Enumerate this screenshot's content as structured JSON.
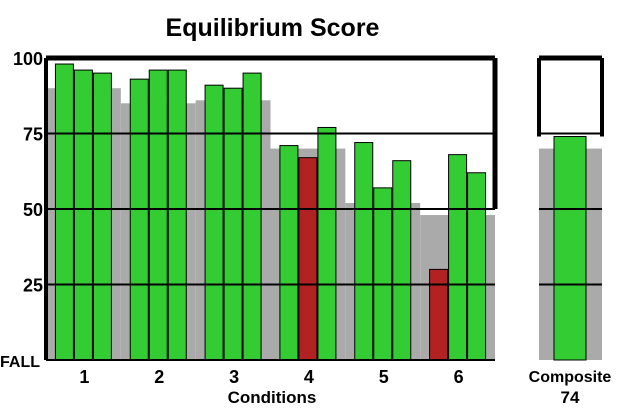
{
  "chart_data": {
    "type": "bar",
    "title": "Equilibrium Score",
    "xlabel": "Conditions",
    "ylabel": "",
    "ylim": [
      0,
      100
    ],
    "yticks": [
      {
        "value": 100,
        "label": "100"
      },
      {
        "value": 75,
        "label": "75"
      },
      {
        "value": 50,
        "label": "50"
      },
      {
        "value": 25,
        "label": "25"
      },
      {
        "value": 0,
        "label": "FALL"
      }
    ],
    "grid": true,
    "categories": [
      "1",
      "2",
      "3",
      "4",
      "5",
      "6"
    ],
    "trials": [
      [
        98,
        96,
        95
      ],
      [
        93,
        96,
        96
      ],
      [
        91,
        90,
        95
      ],
      [
        71,
        67,
        77
      ],
      [
        72,
        57,
        66
      ],
      [
        30,
        68,
        62
      ]
    ],
    "falls": [
      [
        false,
        false,
        false
      ],
      [
        false,
        false,
        false
      ],
      [
        false,
        false,
        false
      ],
      [
        false,
        true,
        false
      ],
      [
        false,
        false,
        false
      ],
      [
        true,
        false,
        false
      ]
    ],
    "normal_range": [
      90,
      85,
      86,
      70,
      52,
      48
    ],
    "composite": {
      "label": "Composite",
      "value": 74,
      "value_label": "74",
      "normal": 70
    },
    "colors": {
      "trial": "#33cc33",
      "fall": "#b22222",
      "normal": "#aaaaaa",
      "outline": "#000000"
    }
  }
}
